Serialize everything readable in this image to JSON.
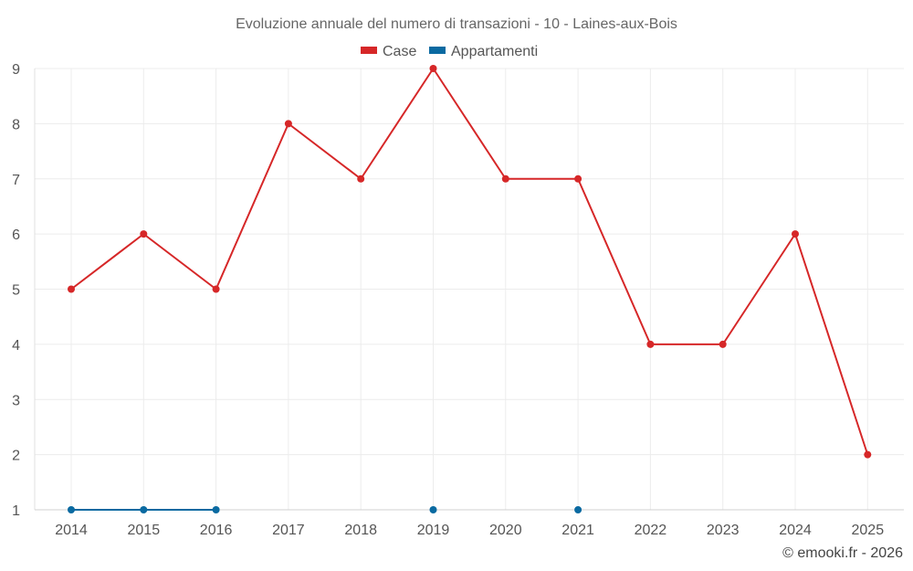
{
  "chart_data": {
    "type": "line",
    "title": "Evoluzione annuale del numero di transazioni - 10 - Laines-aux-Bois",
    "x": [
      "2014",
      "2015",
      "2016",
      "2017",
      "2018",
      "2019",
      "2020",
      "2021",
      "2022",
      "2023",
      "2024",
      "2025"
    ],
    "ylim": [
      1,
      9
    ],
    "yticks": [
      1,
      2,
      3,
      4,
      5,
      6,
      7,
      8,
      9
    ],
    "grid": true,
    "legend": "top-center",
    "series": [
      {
        "name": "Case",
        "color": "#d62728",
        "values": [
          5,
          6,
          5,
          8,
          7,
          9,
          7,
          7,
          4,
          4,
          6,
          2
        ]
      },
      {
        "name": "Appartamenti",
        "color": "#0a6aa1",
        "values": [
          1,
          1,
          1,
          null,
          null,
          1,
          null,
          1,
          null,
          null,
          null,
          null
        ]
      }
    ]
  },
  "credit": "© emooki.fr - 2026"
}
